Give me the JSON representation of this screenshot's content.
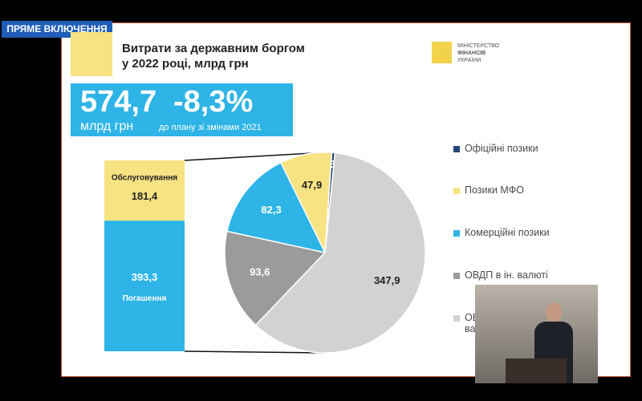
{
  "broadcast_label": "ПРЯМЕ ВКЛЮЧЕННЯ",
  "title": [
    "Витрати за державним боргом",
    "у 2022 році, млрд грн"
  ],
  "ministry": [
    "МІНІСТЕРСТВО",
    "ФІНАНСІВ",
    "УКРАЇНИ"
  ],
  "headline": {
    "total": "574,7",
    "unit": "млрд грн",
    "change": "-8,3%",
    "change_note": "до плану зі змінами 2021"
  },
  "chart_data": [
    {
      "type": "bar",
      "categories": [
        "Обслуговування",
        "Погашення"
      ],
      "values": [
        181.4,
        393.3
      ],
      "value_labels": [
        "181,4",
        "393,3"
      ],
      "colors": [
        "#f7e382",
        "#2eb4e6"
      ]
    },
    {
      "type": "pie",
      "categories": [
        "Офіційні позики",
        "Позики МФО",
        "Комерційні позики",
        "ОВДП в ін. валюті",
        "ОВДП в нац. валюті"
      ],
      "values": [
        3,
        47.9,
        82.3,
        93.6,
        347.9
      ],
      "value_labels": [
        "3",
        "47,9",
        "82,3",
        "93,6",
        "347,9"
      ],
      "colors": [
        "#27497a",
        "#f7e382",
        "#2eb4e6",
        "#9b9b9b",
        "#d2d2d2"
      ]
    }
  ]
}
